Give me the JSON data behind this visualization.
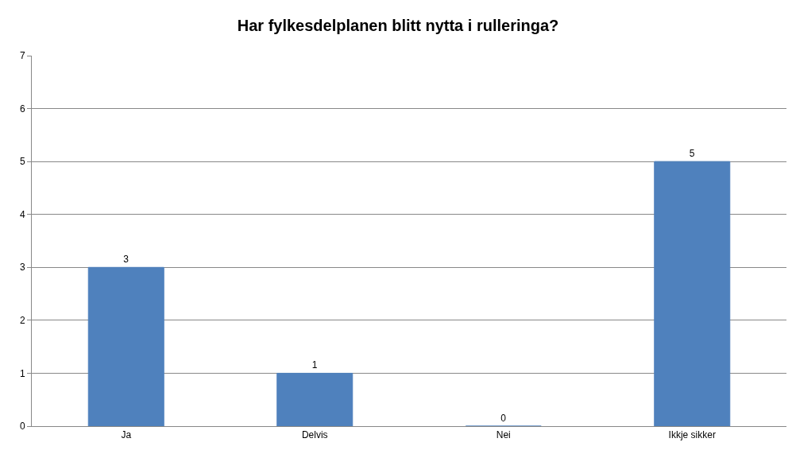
{
  "chart_data": {
    "type": "bar",
    "title": "Har fylkesdelplanen blitt nytta i rulleringa?",
    "categories": [
      "Ja",
      "Delvis",
      "Nei",
      "Ikkje sikker"
    ],
    "values": [
      3,
      1,
      0,
      5
    ],
    "color": "#4f81bd",
    "ylim": [
      0,
      7
    ],
    "yticks": [
      0,
      1,
      2,
      3,
      4,
      5,
      6,
      7
    ],
    "grid": "y",
    "data_labels": true,
    "legend": false
  }
}
